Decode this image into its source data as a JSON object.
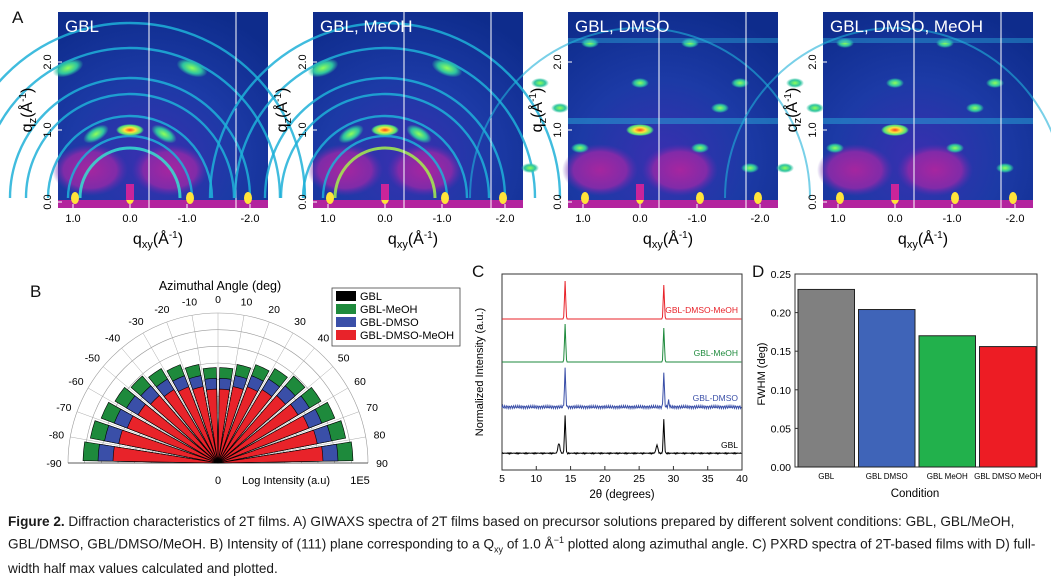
{
  "figure": {
    "caption_label": "Figure 2.",
    "caption_text": " Diffraction characteristics of 2T films. A) GIWAXS spectra of 2T films based on precursor solutions prepared by different solvent conditions: GBL, GBL/MeOH, GBL/DMSO, GBL/DMSO/MeOH. B) Intensity of (111) plane corresponding to a Q",
    "caption_sub": "xy",
    "caption_text2": " of 1.0 Å",
    "caption_sup": "−1",
    "caption_text3": " plotted along azimuthal angle. C) PXRD spectra of 2T-based films with D) full-width half max values calculated and plotted."
  },
  "panel_a": {
    "letter": "A",
    "images": [
      {
        "label": "GBL"
      },
      {
        "label": "GBL, MeOH"
      },
      {
        "label": "GBL, DMSO"
      },
      {
        "label": "GBL, DMSO, MeOH"
      }
    ],
    "ylabel": "q",
    "ylabel_sub": "z",
    "ylabel_unit": "(Å",
    "ylabel_sup": "-1",
    "ylabel_close": ")",
    "xlabel": "q",
    "xlabel_sub": "xy",
    "xlabel_unit": "(Å",
    "xlabel_sup": "-1",
    "xlabel_close": ")",
    "yticks": [
      "0.0",
      "1.0",
      "2.0"
    ],
    "xticks": [
      "1.0",
      "0.0",
      "-1.0",
      "-2.0"
    ]
  },
  "panel_b": {
    "letter": "B",
    "title": "Azimuthal Angle (deg)",
    "bottom_label": "Log Intensity (a.u)",
    "bottom_right": "1E5",
    "bottom_zero": "0",
    "angle_labels": [
      "-90",
      "-80",
      "-70",
      "-60",
      "-50",
      "-40",
      "-30",
      "-20",
      "-10",
      "0",
      "10",
      "20",
      "30",
      "40",
      "50",
      "60",
      "70",
      "80",
      "90"
    ],
    "legend": [
      {
        "name": "GBL",
        "color": "#000000"
      },
      {
        "name": "GBL-MeOH",
        "color": "#1e8a3c"
      },
      {
        "name": "GBL-DMSO",
        "color": "#3a4fa8"
      },
      {
        "name": "GBL-DMSO-MeOH",
        "color": "#e8232a"
      }
    ]
  },
  "panel_c": {
    "letter": "C",
    "xlabel": "2θ (degrees)",
    "ylabel": "Normalized Intensity (a.u.)",
    "xticks": [
      "5",
      "10",
      "15",
      "20",
      "25",
      "30",
      "35",
      "40"
    ],
    "traces": [
      {
        "name": "GBL-DMSO-MeOH",
        "color": "#e8232a"
      },
      {
        "name": "GBL-MeOH",
        "color": "#1e8a3c"
      },
      {
        "name": "GBL-DMSO",
        "color": "#3a4fa8"
      },
      {
        "name": "GBL",
        "color": "#000000"
      }
    ]
  },
  "chart_data": {
    "type": "bar",
    "title": "",
    "xlabel": "Condition",
    "ylabel": "FWHM (deg)",
    "categories": [
      "GBL",
      "GBL DMSO",
      "GBL MeOH",
      "GBL DMSO MeOH"
    ],
    "values": [
      0.23,
      0.204,
      0.17,
      0.156
    ],
    "colors": [
      "#808080",
      "#3f64b8",
      "#22b14c",
      "#ed1c24"
    ],
    "ylim": [
      0,
      0.25
    ],
    "yticks": [
      "0.00",
      "0.05",
      "0.10",
      "0.15",
      "0.20",
      "0.25"
    ],
    "letter": "D"
  }
}
